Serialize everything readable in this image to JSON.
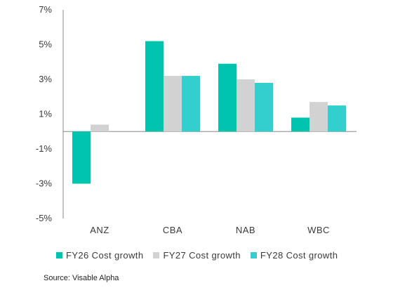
{
  "chart_data": {
    "type": "bar",
    "categories": [
      "ANZ",
      "CBA",
      "NAB",
      "WBC"
    ],
    "series": [
      {
        "name": "FY26 Cost growth",
        "color": "#00c4ad",
        "values": [
          -3.0,
          5.2,
          3.9,
          0.8
        ]
      },
      {
        "name": "FY27 Cost growth",
        "color": "#d2d2d2",
        "values": [
          0.4,
          3.2,
          3.0,
          1.7
        ]
      },
      {
        "name": "FY28 Cost growth",
        "color": "#33cfcf",
        "values": [
          0.0,
          3.2,
          2.8,
          1.5
        ]
      }
    ],
    "yticks": [
      "7%",
      "5%",
      "3%",
      "1%",
      "-1%",
      "-3%",
      "-5%"
    ],
    "ytick_values": [
      7,
      5,
      3,
      1,
      -1,
      -3,
      -5
    ],
    "ylim": [
      -5,
      7
    ],
    "grid": false,
    "legend_position": "bottom"
  },
  "source_text": "Source: Visable Alpha"
}
